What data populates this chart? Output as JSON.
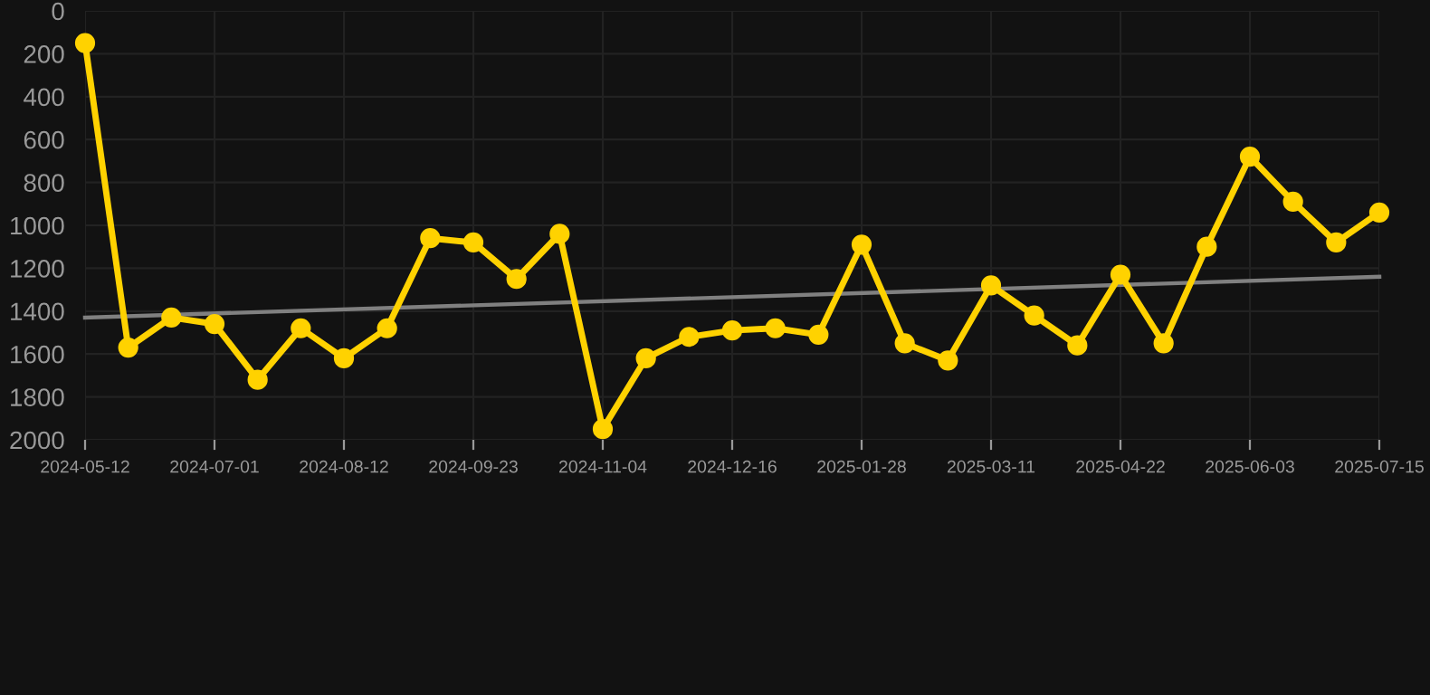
{
  "chart_data": {
    "type": "line",
    "categories": [
      "2024-05-12",
      null,
      null,
      "2024-07-01",
      null,
      null,
      "2024-08-12",
      null,
      null,
      "2024-09-23",
      null,
      null,
      "2024-11-04",
      null,
      null,
      "2024-12-16",
      null,
      null,
      "2025-01-28",
      null,
      null,
      "2025-03-11",
      null,
      null,
      "2025-04-22",
      null,
      null,
      "2025-06-03",
      null,
      null,
      "2025-07-15"
    ],
    "series": [
      {
        "color": "#ffd200",
        "marker": "circle",
        "values": [
          150,
          1570,
          1430,
          1460,
          1720,
          1480,
          1620,
          1480,
          1060,
          1080,
          1250,
          1040,
          1950,
          1620,
          1520,
          1490,
          1480,
          1510,
          1090,
          1550,
          1630,
          1280,
          1420,
          1560,
          1230,
          1550,
          1100,
          680,
          890,
          1080,
          940
        ]
      },
      {
        "color": "#808080",
        "marker": "none",
        "values": [
          1430,
          null,
          null,
          null,
          null,
          null,
          null,
          null,
          null,
          null,
          null,
          null,
          null,
          null,
          null,
          null,
          null,
          null,
          null,
          null,
          null,
          null,
          null,
          null,
          null,
          null,
          null,
          null,
          null,
          null,
          1240
        ]
      }
    ],
    "ylim": [
      2000,
      0
    ],
    "yticks": [
      0,
      200,
      400,
      600,
      800,
      1000,
      1200,
      1400,
      1600,
      1800,
      2000
    ],
    "grid": true
  }
}
